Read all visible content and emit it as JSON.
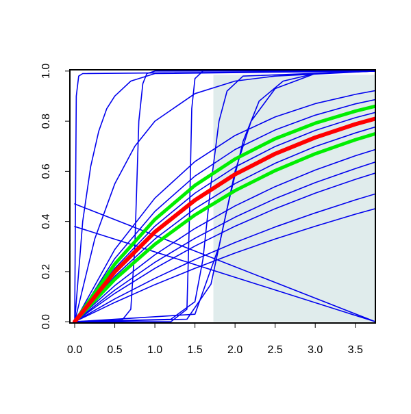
{
  "chart_data": {
    "type": "line",
    "xlim": [
      -0.06,
      3.75
    ],
    "ylim": [
      -0.005,
      1.005
    ],
    "xticks": [
      {
        "value": 0,
        "label": "0.0"
      },
      {
        "value": 0.5,
        "label": "0.5"
      },
      {
        "value": 1,
        "label": "1.0"
      },
      {
        "value": 1.5,
        "label": "1.5"
      },
      {
        "value": 2,
        "label": "2.0"
      },
      {
        "value": 2.5,
        "label": "2.5"
      },
      {
        "value": 3,
        "label": "3.0"
      },
      {
        "value": 3.5,
        "label": "3.5"
      }
    ],
    "yticks": [
      {
        "value": 0,
        "label": "0.0"
      },
      {
        "value": 0.2,
        "label": "0.2"
      },
      {
        "value": 0.4,
        "label": "0.4"
      },
      {
        "value": 0.6,
        "label": "0.6"
      },
      {
        "value": 0.8,
        "label": "0.8"
      },
      {
        "value": 1,
        "label": "1.0"
      }
    ],
    "shaded_region": {
      "x": [
        1.73,
        3.75
      ],
      "y": [
        0,
        0.985
      ],
      "color": "#e0ecec"
    },
    "series": [
      {
        "color": "#0000ee",
        "linewidth": 1.6,
        "x": [
          0,
          0.5,
          1,
          1.5,
          2,
          2.5,
          3,
          3.5,
          3.75
        ],
        "values": [
          0,
          0.077,
          0.148,
          0.213,
          0.274,
          0.33,
          0.381,
          0.429,
          0.451
        ]
      },
      {
        "color": "#0000ee",
        "linewidth": 1.6,
        "x": [
          0,
          0.5,
          1,
          1.5,
          2,
          2.5,
          3,
          3.5,
          3.75
        ],
        "values": [
          0,
          0.091,
          0.173,
          0.248,
          0.316,
          0.378,
          0.434,
          0.486,
          0.51
        ]
      },
      {
        "color": "#0000ee",
        "linewidth": 1.6,
        "x": [
          0,
          0.5,
          1,
          1.5,
          2,
          2.5,
          3,
          3.5,
          3.75
        ],
        "values": [
          0,
          0.113,
          0.213,
          0.302,
          0.381,
          0.451,
          0.513,
          0.568,
          0.593
        ]
      },
      {
        "color": "#0000ee",
        "linewidth": 1.6,
        "x": [
          0,
          0.5,
          1,
          1.5,
          2,
          2.5,
          3,
          3.5,
          3.75
        ],
        "values": [
          0,
          0.126,
          0.237,
          0.333,
          0.417,
          0.491,
          0.555,
          0.611,
          0.637
        ]
      },
      {
        "color": "#0000ee",
        "linewidth": 1.6,
        "x": [
          0,
          0.5,
          1,
          1.5,
          2,
          2.5,
          3,
          3.5,
          3.75
        ],
        "values": [
          0,
          0.144,
          0.267,
          0.372,
          0.462,
          0.539,
          0.605,
          0.662,
          0.687
        ]
      },
      {
        "color": "#0000ee",
        "linewidth": 1.6,
        "x": [
          0,
          0.5,
          1,
          1.5,
          2,
          2.5,
          3,
          3.5,
          3.75
        ],
        "values": [
          0,
          0.181,
          0.33,
          0.451,
          0.551,
          0.632,
          0.699,
          0.753,
          0.777
        ]
      },
      {
        "color": "#0000ee",
        "linewidth": 1.6,
        "x": [
          0,
          0.5,
          1,
          1.5,
          2,
          2.5,
          3,
          3.5,
          3.75
        ],
        "values": [
          0,
          0.213,
          0.381,
          0.513,
          0.617,
          0.699,
          0.763,
          0.814,
          0.835
        ]
      },
      {
        "color": "#0000ee",
        "linewidth": 1.6,
        "x": [
          0,
          0.5,
          1,
          1.5,
          2,
          2.5,
          3,
          3.5,
          3.75
        ],
        "values": [
          0,
          0.252,
          0.44,
          0.581,
          0.687,
          0.765,
          0.824,
          0.869,
          0.886
        ]
      },
      {
        "color": "#0000ee",
        "linewidth": 1.6,
        "x": [
          0,
          0.5,
          1,
          1.5,
          2,
          2.5,
          3,
          3.5,
          3.75
        ],
        "values": [
          0,
          0.288,
          0.493,
          0.639,
          0.743,
          0.817,
          0.87,
          0.907,
          0.922
        ]
      },
      {
        "color": "#0000ee",
        "linewidth": 1.6,
        "x": [
          0,
          0.02,
          0.05,
          0.1,
          3.75
        ],
        "values": [
          0,
          0.9,
          0.98,
          0.99,
          1
        ]
      },
      {
        "color": "#0000ee",
        "linewidth": 1.6,
        "x": [
          0,
          0.1,
          0.2,
          0.3,
          0.4,
          0.5,
          0.7,
          1.0,
          3.75
        ],
        "values": [
          0,
          0.4,
          0.62,
          0.76,
          0.85,
          0.9,
          0.96,
          0.99,
          1
        ]
      },
      {
        "color": "#0000ee",
        "linewidth": 1.6,
        "x": [
          0,
          0.6,
          0.7,
          0.75,
          0.8,
          0.85,
          0.9,
          1.0,
          3.75
        ],
        "values": [
          0,
          0.01,
          0.05,
          0.3,
          0.8,
          0.95,
          0.99,
          1,
          1
        ]
      },
      {
        "color": "#0000ee",
        "linewidth": 1.6,
        "x": [
          0,
          0.25,
          0.5,
          0.75,
          1,
          1.5,
          2,
          2.5,
          3.75
        ],
        "values": [
          0,
          0.33,
          0.55,
          0.7,
          0.8,
          0.91,
          0.96,
          0.98,
          1
        ]
      },
      {
        "color": "#0000ee",
        "linewidth": 1.6,
        "x": [
          0,
          1.2,
          1.4,
          1.43,
          1.46,
          1.5,
          1.6,
          3.75
        ],
        "values": [
          0,
          0,
          0.05,
          0.4,
          0.85,
          0.97,
          1,
          1
        ]
      },
      {
        "color": "#0000ee",
        "linewidth": 1.6,
        "x": [
          0,
          1.2,
          1.5,
          1.6,
          1.7,
          1.8,
          1.9,
          2.1,
          3.75
        ],
        "values": [
          0,
          0.01,
          0.08,
          0.25,
          0.55,
          0.8,
          0.92,
          0.98,
          1
        ]
      },
      {
        "color": "#0000ee",
        "linewidth": 1.6,
        "x": [
          0,
          1.4,
          1.7,
          1.9,
          2.1,
          2.3,
          2.6,
          3.0,
          3.75
        ],
        "values": [
          0,
          0.01,
          0.15,
          0.45,
          0.72,
          0.88,
          0.96,
          0.99,
          1
        ]
      },
      {
        "color": "#0000ee",
        "linewidth": 1.6,
        "x": [
          0,
          1.5,
          1.8,
          2.0,
          2.2,
          2.5,
          3.0,
          3.75
        ],
        "values": [
          0,
          0.03,
          0.3,
          0.6,
          0.8,
          0.93,
          0.99,
          1
        ]
      },
      {
        "color": "#0000ee",
        "linewidth": 1.6,
        "x": [
          0,
          3.75
        ],
        "values": [
          0.47,
          0
        ]
      },
      {
        "color": "#0000ee",
        "linewidth": 1.6,
        "x": [
          0,
          3.75
        ],
        "values": [
          0.38,
          0
        ]
      },
      {
        "color": "#00ee00",
        "linewidth": 5,
        "x": [
          0,
          0.5,
          1,
          1.5,
          2,
          2.5,
          3,
          3.5,
          3.75
        ],
        "values": [
          0,
          0.169,
          0.309,
          0.426,
          0.523,
          0.603,
          0.67,
          0.726,
          0.75
        ]
      },
      {
        "color": "#00ee00",
        "linewidth": 5,
        "x": [
          0,
          0.5,
          1,
          1.5,
          2,
          2.5,
          3,
          3.5,
          3.75
        ],
        "values": [
          0,
          0.23,
          0.408,
          0.544,
          0.649,
          0.73,
          0.792,
          0.84,
          0.86
        ]
      },
      {
        "color": "#ff0000",
        "linewidth": 6,
        "x": [
          0,
          0.5,
          1,
          1.5,
          2,
          2.5,
          3,
          3.5,
          3.75
        ],
        "values": [
          0,
          0.199,
          0.358,
          0.485,
          0.588,
          0.67,
          0.735,
          0.788,
          0.81
        ]
      }
    ]
  }
}
